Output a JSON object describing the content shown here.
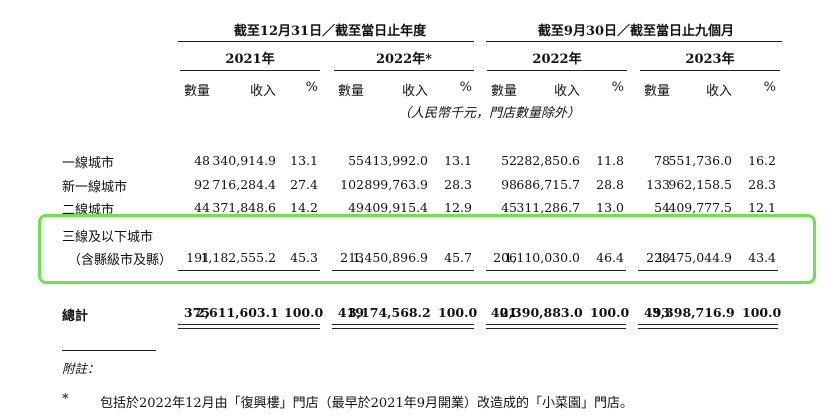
{
  "header": {
    "group1": "截至12月31日／截至當日止年度",
    "group2": "截至9月30日／截至當日止九個月",
    "years": [
      "2021年",
      "2022年*",
      "2022年",
      "2023年"
    ],
    "col_labels": [
      "數量",
      "收入",
      "%",
      "數量",
      "收入",
      "%",
      "數量",
      "收入",
      "%",
      "數量",
      "收入",
      "%"
    ],
    "unit_note": "（人民幣千元，門店數量除外）"
  },
  "rows": [
    {
      "label": "一線城市",
      "cells": [
        "48",
        "340,914.9",
        "13.1",
        "55",
        "413,992.0",
        "13.1",
        "52",
        "282,850.6",
        "11.8",
        "78",
        "551,736.0",
        "16.2"
      ]
    },
    {
      "label": "新一線城市",
      "cells": [
        "92",
        "716,284.4",
        "27.4",
        "102",
        "899,763.9",
        "28.3",
        "98",
        "686,715.7",
        "28.8",
        "133",
        "962,158.5",
        "28.3"
      ]
    },
    {
      "label": "二線城市",
      "cells": [
        "44",
        "371,848.6",
        "14.2",
        "49",
        "409,915.4",
        "12.9",
        "45",
        "311,286.7",
        "13.0",
        "54",
        "409,777.5",
        "12.1"
      ]
    }
  ],
  "highlight_row": {
    "label_line1": "三線及以下城市",
    "label_line2": "（含縣級市及縣）",
    "cells": [
      "191",
      "1,182,555.2",
      "45.3",
      "213",
      "1,450,896.9",
      "45.7",
      "206",
      "1,110,030.0",
      "46.4",
      "228",
      "1,475,044.9",
      "43.4"
    ]
  },
  "total": {
    "label": "總計",
    "cells": [
      "375",
      "2,611,603.1",
      "100.0",
      "419",
      "3,174,568.2",
      "100.0",
      "401",
      "2,390,883.0",
      "100.0",
      "493",
      "3,398,716.9",
      "100.0"
    ]
  },
  "footnote": {
    "heading": "附註：",
    "marker": "*",
    "text": "包括於2022年12月由「復興樓」門店（最早於2021年9月開業）改造成的「小菜園」門店。"
  }
}
